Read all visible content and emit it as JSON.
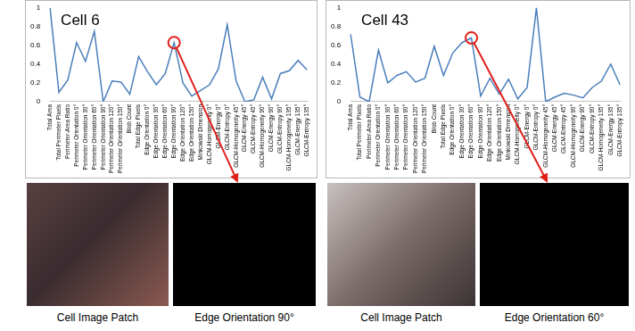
{
  "chart_data": [
    {
      "type": "line",
      "title": "Cell 6",
      "categories": [
        "Total Area",
        "Total Perimeter Pixels",
        "Perimeter-Area Ratio",
        "Perimeter Orientation 0°",
        "Perimeter Orientation 30°",
        "Perimeter Orientation 60°",
        "Perimeter Orientation 90°",
        "Perimeter Orientation 120°",
        "Perimeter Orientation 150°",
        "Blob Count",
        "Total Edge Pixels",
        "Edge Orientation 0°",
        "Edge Orientation 30°",
        "Edge Orientation 60°",
        "Edge Orientation 90°",
        "Edge Orientation 120°",
        "Edge Orientation 150°",
        "Minkowski Dimension",
        "GLCM-Homogeneity 0°",
        "GLCM-Energy 0°",
        "GLCM-Entropy 0°",
        "GLCM-Homogeneity 45°",
        "GLCM-Energy 45°",
        "GLCM-Entropy 45°",
        "GLCM-Homogeneity 90°",
        "GLCM-Energy 90°",
        "GLCM-Entropy 90°",
        "GLCM-Homogeneity 135°",
        "GLCM-Energy 135°",
        "GLCM-Entropy 135°"
      ],
      "values": [
        1.0,
        0.1,
        0.23,
        0.63,
        0.43,
        0.75,
        0.0,
        0.22,
        0.21,
        0.08,
        0.48,
        0.32,
        0.18,
        0.3,
        0.63,
        0.2,
        0.06,
        0.12,
        0.18,
        0.35,
        0.82,
        0.22,
        0.0,
        0.02,
        0.26,
        0.03,
        0.3,
        0.33,
        0.44,
        0.34
      ],
      "color": "#4a7ebb",
      "ylim": [
        0,
        1
      ],
      "yticks": [
        0,
        0.2,
        0.4,
        0.6,
        0.8,
        1
      ],
      "grid": false
    },
    {
      "type": "line",
      "title": "Cell 43",
      "categories": [
        "Total Area",
        "Total Perimeter Pixels",
        "Perimeter-Area Ratio",
        "Perimeter Orientation 0°",
        "Perimeter Orientation 30°",
        "Perimeter Orientation 60°",
        "Perimeter Orientation 90°",
        "Perimeter Orientation 120°",
        "Perimeter Orientation 150°",
        "Blob Count",
        "Total Edge Pixels",
        "Edge Orientation 0°",
        "Edge Orientation 30°",
        "Edge Orientation 60°",
        "Edge Orientation 90°",
        "Edge Orientation 120°",
        "Edge Orientation 150°",
        "Minkowski Dimension",
        "GLCM-Homogeneity 0°",
        "GLCM-Energy 0°",
        "GLCM-Entropy 0°",
        "GLCM-Homogeneity 45°",
        "GLCM-Energy 45°",
        "GLCM-Entropy 45°",
        "GLCM-Homogeneity 90°",
        "GLCM-Energy 90°",
        "GLCM-Entropy 90°",
        "GLCM-Homogeneity 135°",
        "GLCM-Energy 135°",
        "GLCM-Entropy 135°"
      ],
      "values": [
        0.72,
        0.05,
        0.0,
        0.55,
        0.2,
        0.28,
        0.32,
        0.21,
        0.25,
        0.59,
        0.28,
        0.52,
        0.63,
        0.68,
        0.06,
        0.25,
        0.08,
        0.24,
        0.03,
        0.15,
        1.0,
        0.0,
        0.05,
        0.09,
        0.07,
        0.04,
        0.15,
        0.22,
        0.4,
        0.18
      ],
      "color": "#4a7ebb",
      "ylim": [
        0,
        1
      ],
      "yticks": [
        0,
        0.2,
        0.4,
        0.6,
        0.8,
        1
      ],
      "grid": false
    }
  ],
  "panels": [
    {
      "captions": [
        "Cell Image Patch",
        "Edge Orientation 90°"
      ]
    },
    {
      "captions": [
        "Cell Image Patch",
        "Edge Orientation 60°"
      ]
    }
  ]
}
